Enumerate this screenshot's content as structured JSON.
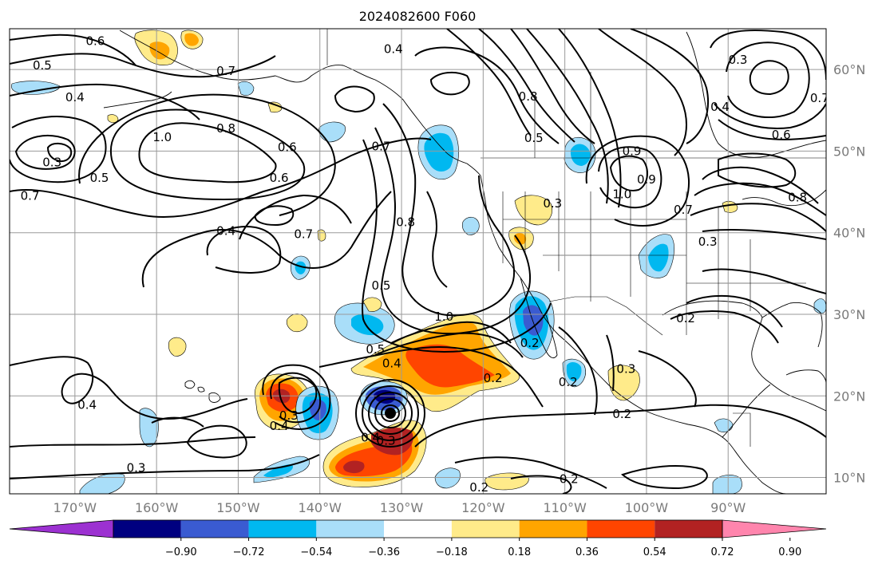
{
  "title": "2024082600 F060",
  "map": {
    "projection": "cylindrical",
    "lon_range": [
      -178,
      -78
    ],
    "lat_range": [
      8,
      65
    ],
    "longitude_labels": [
      {
        "lon": -170,
        "text": "170°W"
      },
      {
        "lon": -160,
        "text": "160°W"
      },
      {
        "lon": -150,
        "text": "150°W"
      },
      {
        "lon": -140,
        "text": "140°W"
      },
      {
        "lon": -130,
        "text": "130°W"
      },
      {
        "lon": -120,
        "text": "120°W"
      },
      {
        "lon": -110,
        "text": "110°W"
      },
      {
        "lon": -100,
        "text": "100°W"
      },
      {
        "lon": -90,
        "text": "90°W"
      }
    ],
    "latitude_labels": [
      {
        "lat": 60,
        "text": "60°N"
      },
      {
        "lat": 50,
        "text": "50°N"
      },
      {
        "lat": 40,
        "text": "40°N"
      },
      {
        "lat": 30,
        "text": "30°N"
      },
      {
        "lat": 20,
        "text": "20°N"
      },
      {
        "lat": 10,
        "text": "10°N"
      }
    ],
    "grid": true
  },
  "colorbar": {
    "ticks": [
      "−0.90",
      "−0.72",
      "−0.54",
      "−0.36",
      "−0.18",
      "0.18",
      "0.36",
      "0.54",
      "0.72",
      "0.90"
    ],
    "colors": [
      "#9c31d1",
      "#000080",
      "#3a5bd1",
      "#00b8f0",
      "#a9def9",
      "#ffffff",
      "#ffeb8a",
      "#ffa500",
      "#ff4500",
      "#b22222",
      "#ff85ad"
    ],
    "extend": "both"
  },
  "contour_labels": [
    {
      "text": "0.6",
      "lon": -167.5,
      "lat": 63.5
    },
    {
      "text": "0.5",
      "lon": -174,
      "lat": 60.5
    },
    {
      "text": "0.7",
      "lon": -151.5,
      "lat": 59.8
    },
    {
      "text": "0.4",
      "lon": -170,
      "lat": 56.6
    },
    {
      "text": "1.0",
      "lon": -159.3,
      "lat": 51.7
    },
    {
      "text": "0.8",
      "lon": -151.5,
      "lat": 52.8
    },
    {
      "text": "0.3",
      "lon": -172.8,
      "lat": 48.6
    },
    {
      "text": "0.5",
      "lon": -167,
      "lat": 46.7
    },
    {
      "text": "0.7",
      "lon": -175.5,
      "lat": 44.5
    },
    {
      "text": "0.6",
      "lon": -144,
      "lat": 50.5
    },
    {
      "text": "0.6",
      "lon": -145,
      "lat": 46.7
    },
    {
      "text": "0.4",
      "lon": -151.5,
      "lat": 40.2
    },
    {
      "text": "0.7",
      "lon": -142,
      "lat": 39.8
    },
    {
      "text": "0.7",
      "lon": -132.5,
      "lat": 50.6
    },
    {
      "text": "0.8",
      "lon": -129.5,
      "lat": 41.3
    },
    {
      "text": "0.5",
      "lon": -132.5,
      "lat": 33.5
    },
    {
      "text": "0.4",
      "lon": -131,
      "lat": 62.5
    },
    {
      "text": "0.8",
      "lon": -114.5,
      "lat": 56.7
    },
    {
      "text": "0.5",
      "lon": -113.8,
      "lat": 51.6
    },
    {
      "text": "0.3",
      "lon": -111.5,
      "lat": 43.6
    },
    {
      "text": "1.0",
      "lon": -103,
      "lat": 44.7
    },
    {
      "text": "0.9",
      "lon": -101.8,
      "lat": 50
    },
    {
      "text": "0.9",
      "lon": -100,
      "lat": 46.5
    },
    {
      "text": "0.3",
      "lon": -88.8,
      "lat": 61.2
    },
    {
      "text": "0.4",
      "lon": -91,
      "lat": 55.4
    },
    {
      "text": "0.6",
      "lon": -83.5,
      "lat": 52
    },
    {
      "text": "0.7",
      "lon": -78.8,
      "lat": 56.5
    },
    {
      "text": "0.7",
      "lon": -95.5,
      "lat": 42.8
    },
    {
      "text": "0.8",
      "lon": -81.5,
      "lat": 44.3
    },
    {
      "text": "0.3",
      "lon": -92.5,
      "lat": 38.9
    },
    {
      "text": "0.2",
      "lon": -95.2,
      "lat": 29.5
    },
    {
      "text": "1.0",
      "lon": -124.8,
      "lat": 29.7
    },
    {
      "text": "0.5",
      "lon": -133.2,
      "lat": 25.7
    },
    {
      "text": "0.4",
      "lon": -131.2,
      "lat": 24
    },
    {
      "text": "0.2",
      "lon": -118.8,
      "lat": 22.2
    },
    {
      "text": "0.2",
      "lon": -114.3,
      "lat": 26.5
    },
    {
      "text": "0.3",
      "lon": -102.5,
      "lat": 23.3
    },
    {
      "text": "0.2",
      "lon": -109.6,
      "lat": 21.7
    },
    {
      "text": "0.2",
      "lon": -103,
      "lat": 17.8
    },
    {
      "text": "0.4",
      "lon": -168.5,
      "lat": 18.9
    },
    {
      "text": "0.3",
      "lon": -143.8,
      "lat": 17.6
    },
    {
      "text": "0.4",
      "lon": -145,
      "lat": 16.3
    },
    {
      "text": "0.3",
      "lon": -162.5,
      "lat": 11.2
    },
    {
      "text": "0.4",
      "lon": -133.8,
      "lat": 14.9
    },
    {
      "text": "0.3",
      "lon": -131.9,
      "lat": 14.5
    },
    {
      "text": "0.2",
      "lon": -120.5,
      "lat": 8.8
    },
    {
      "text": "0.2",
      "lon": -109.5,
      "lat": 9.8
    }
  ]
}
